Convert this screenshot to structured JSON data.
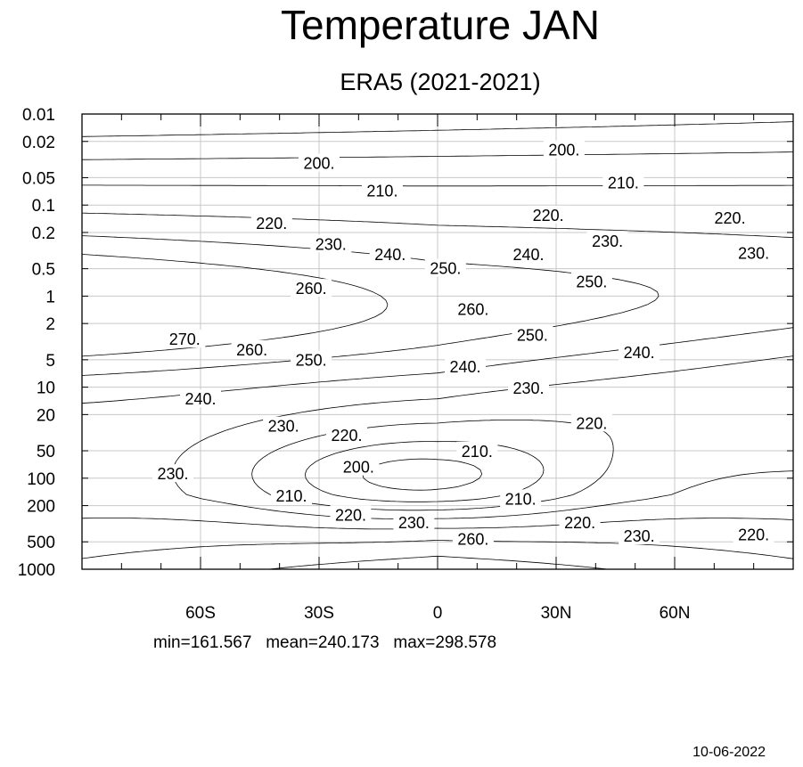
{
  "chart_data": {
    "type": "contour",
    "title": "Temperature JAN",
    "subtitle": "ERA5 (2021-2021)",
    "xlabel": "",
    "ylabel": "",
    "x_range": [
      -90,
      90
    ],
    "y_scale": "log",
    "y_range": [
      0.01,
      1000
    ],
    "y_reversed": true,
    "grid": true,
    "x_ticks": [
      {
        "value": -60,
        "label": "60S"
      },
      {
        "value": -30,
        "label": "30S"
      },
      {
        "value": 0,
        "label": "0"
      },
      {
        "value": 30,
        "label": "30N"
      },
      {
        "value": 60,
        "label": "60N"
      }
    ],
    "y_ticks": [
      {
        "value": 0.01,
        "label": "0.01"
      },
      {
        "value": 0.02,
        "label": "0.02"
      },
      {
        "value": 0.05,
        "label": "0.05"
      },
      {
        "value": 0.1,
        "label": "0.1"
      },
      {
        "value": 0.2,
        "label": "0.2"
      },
      {
        "value": 0.5,
        "label": "0.5"
      },
      {
        "value": 1,
        "label": "1"
      },
      {
        "value": 2,
        "label": "2"
      },
      {
        "value": 5,
        "label": "5"
      },
      {
        "value": 10,
        "label": "10"
      },
      {
        "value": 20,
        "label": "20"
      },
      {
        "value": 50,
        "label": "50"
      },
      {
        "value": 100,
        "label": "100"
      },
      {
        "value": 200,
        "label": "200"
      },
      {
        "value": 500,
        "label": "500"
      },
      {
        "value": 1000,
        "label": "1000"
      }
    ],
    "contour_levels": [
      200,
      210,
      220,
      230,
      240,
      250,
      260,
      270
    ],
    "contour_labels": [
      {
        "text": "200.",
        "lat": -30,
        "p": 0.035
      },
      {
        "text": "200.",
        "lat": 32,
        "p": 0.025
      },
      {
        "text": "210.",
        "lat": -14,
        "p": 0.07
      },
      {
        "text": "210.",
        "lat": 47,
        "p": 0.057
      },
      {
        "text": "220.",
        "lat": -42,
        "p": 0.16
      },
      {
        "text": "220.",
        "lat": 28,
        "p": 0.13
      },
      {
        "text": "220.",
        "lat": 74,
        "p": 0.14
      },
      {
        "text": "230.",
        "lat": -27,
        "p": 0.27
      },
      {
        "text": "230.",
        "lat": 43,
        "p": 0.25
      },
      {
        "text": "230.",
        "lat": 80,
        "p": 0.34
      },
      {
        "text": "240.",
        "lat": -12,
        "p": 0.35
      },
      {
        "text": "240.",
        "lat": 23,
        "p": 0.35
      },
      {
        "text": "250.",
        "lat": 2,
        "p": 0.5
      },
      {
        "text": "250.",
        "lat": 39,
        "p": 0.7
      },
      {
        "text": "260.",
        "lat": -32,
        "p": 0.83
      },
      {
        "text": "260.",
        "lat": 9,
        "p": 1.4
      },
      {
        "text": "270.",
        "lat": -64,
        "p": 3.0
      },
      {
        "text": "260.",
        "lat": -47,
        "p": 3.9
      },
      {
        "text": "250.",
        "lat": -32,
        "p": 5.1
      },
      {
        "text": "250.",
        "lat": 24,
        "p": 2.7
      },
      {
        "text": "240.",
        "lat": 7,
        "p": 6.0
      },
      {
        "text": "240.",
        "lat": 51,
        "p": 4.2
      },
      {
        "text": "230.",
        "lat": 23,
        "p": 10.3
      },
      {
        "text": "240.",
        "lat": -60,
        "p": 13.6
      },
      {
        "text": "230.",
        "lat": -39,
        "p": 27.0
      },
      {
        "text": "220.",
        "lat": -23,
        "p": 34.0
      },
      {
        "text": "220.",
        "lat": 39,
        "p": 25.0
      },
      {
        "text": "210.",
        "lat": 10,
        "p": 51.0
      },
      {
        "text": "200.",
        "lat": -20,
        "p": 76.0
      },
      {
        "text": "230.",
        "lat": -67,
        "p": 90.0
      },
      {
        "text": "210.",
        "lat": -37,
        "p": 158.0
      },
      {
        "text": "210.",
        "lat": 21,
        "p": 170.0
      },
      {
        "text": "220.",
        "lat": -22,
        "p": 255.0
      },
      {
        "text": "230.",
        "lat": -6,
        "p": 310.0
      },
      {
        "text": "220.",
        "lat": 36,
        "p": 310.0
      },
      {
        "text": "230.",
        "lat": 51,
        "p": 435.0
      },
      {
        "text": "220.",
        "lat": 80,
        "p": 420.0
      },
      {
        "text": "260.",
        "lat": 9,
        "p": 470.0
      }
    ]
  },
  "stats_text": "min=161.567   mean=240.173   max=298.578",
  "date_text": "10-06-2022"
}
